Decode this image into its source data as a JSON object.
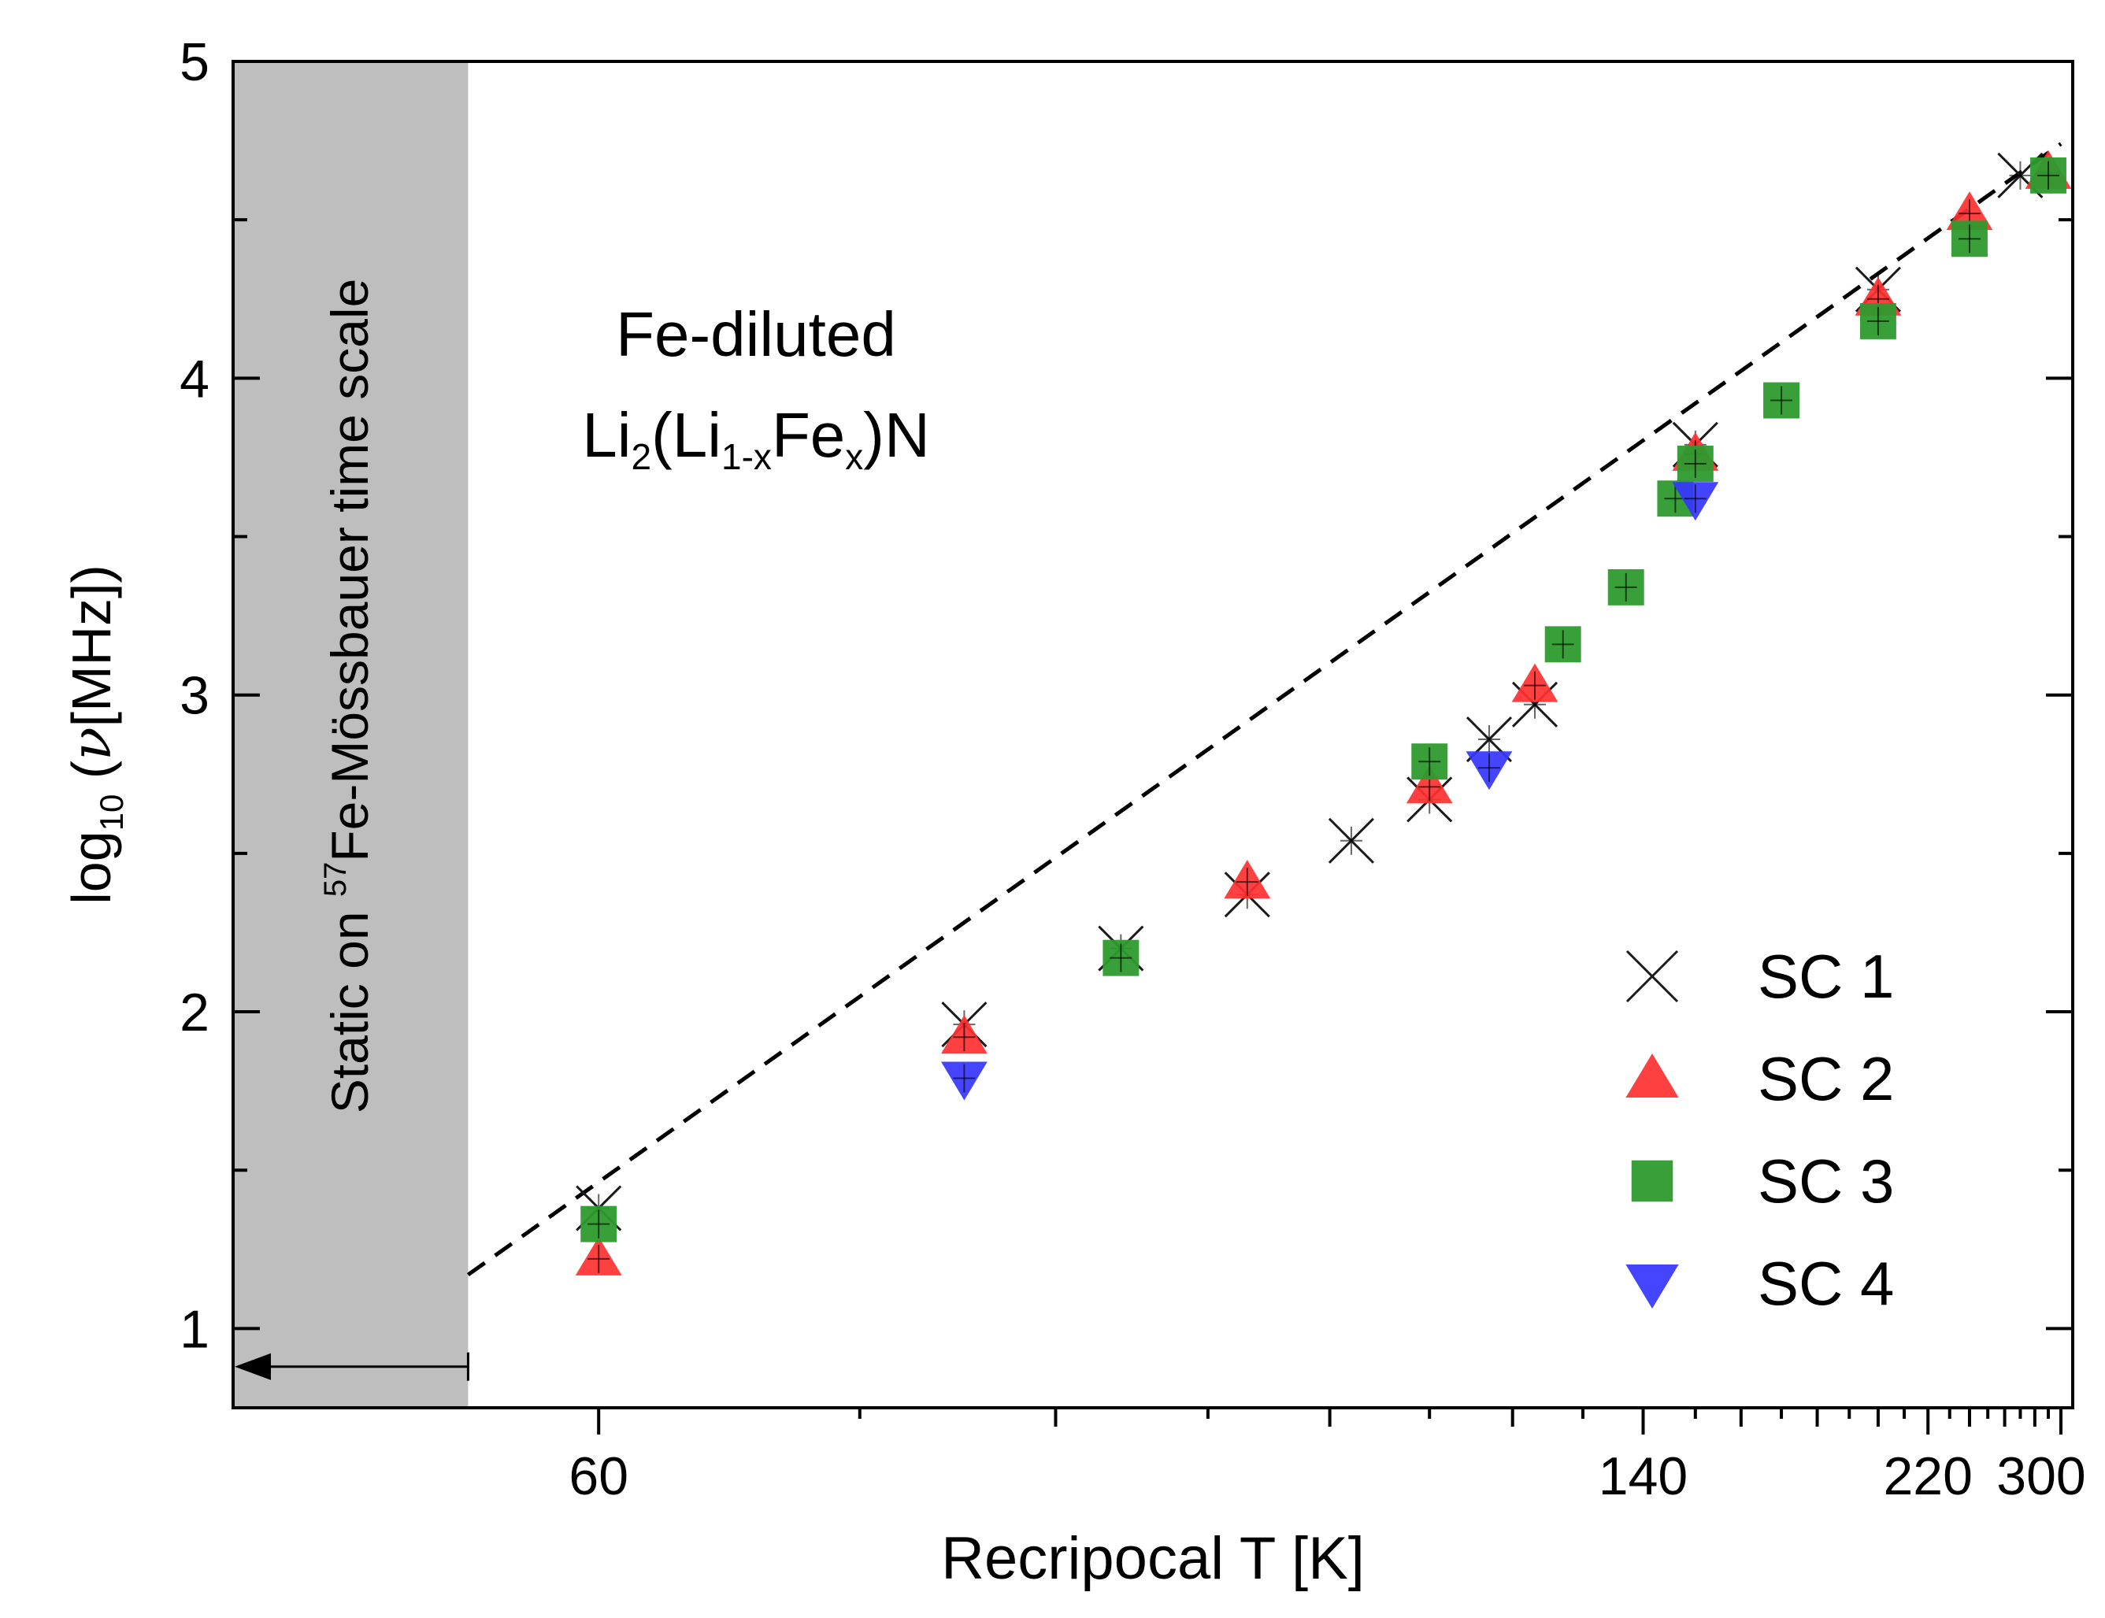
{
  "chart_data": {
    "type": "scatter",
    "title": "",
    "xlabel": "Recripocal T [K]",
    "ylabel": {
      "prefix": "log",
      "subscript": "10",
      "open": " (",
      "symbol": "ν",
      "unit": "[MHz])"
    },
    "x_axis": {
      "scale": "reciprocal temperature (1/T)",
      "range_T": [
        50,
        310
      ],
      "tick_labels": [
        "60",
        "140",
        "220",
        "300"
      ]
    },
    "y_axis": {
      "range": [
        0.75,
        5.0
      ],
      "ticks": [
        1,
        2,
        3,
        4,
        5
      ],
      "tick_labels": [
        "1",
        "2",
        "3",
        "4",
        "5"
      ]
    },
    "annotation": {
      "line1": "Fe-diluted",
      "line2": {
        "a": "Li",
        "b": "2",
        "c": "(Li",
        "d": "1-x",
        "e": "Fe",
        "f": "x",
        "g": ")N"
      }
    },
    "shaded_region": {
      "label_pre": "Static on ",
      "label_sup": "57",
      "label_post": "Fe-Mössbauer time scale",
      "color": "#bebebe"
    },
    "fit_line": {
      "style": "dashed",
      "color": "#000000",
      "points": [
        [
          56,
          1.17
        ],
        [
          300,
          4.74
        ]
      ]
    },
    "series": [
      {
        "name": "SC 1",
        "marker": "x",
        "color": "#1a1a1a",
        "points": [
          [
            60,
            1.38
          ],
          [
            75,
            1.96
          ],
          [
            84,
            2.2
          ],
          [
            93,
            2.37
          ],
          [
            102,
            2.54
          ],
          [
            110,
            2.67
          ],
          [
            117,
            2.86
          ],
          [
            123,
            2.97
          ],
          [
            150,
            3.79
          ],
          [
            200,
            4.28
          ],
          [
            270,
            4.64
          ]
        ]
      },
      {
        "name": "SC 2",
        "marker": "triangle-up",
        "color": "#ff3030",
        "points": [
          [
            60,
            1.22
          ],
          [
            75,
            1.92
          ],
          [
            93,
            2.41
          ],
          [
            110,
            2.71
          ],
          [
            123,
            3.03
          ],
          [
            150,
            3.76
          ],
          [
            200,
            4.25
          ],
          [
            240,
            4.52
          ],
          [
            290,
            4.65
          ]
        ]
      },
      {
        "name": "SC 3",
        "marker": "square",
        "color": "#2e9a2e",
        "points": [
          [
            60,
            1.33
          ],
          [
            84,
            2.17
          ],
          [
            110,
            2.79
          ],
          [
            127,
            3.16
          ],
          [
            137,
            3.34
          ],
          [
            146,
            3.62
          ],
          [
            150,
            3.73
          ],
          [
            170,
            3.93
          ],
          [
            200,
            4.18
          ],
          [
            240,
            4.44
          ],
          [
            290,
            4.64
          ]
        ]
      },
      {
        "name": "SC 4",
        "marker": "triangle-down",
        "color": "#3535ff",
        "points": [
          [
            75,
            1.79
          ],
          [
            117,
            2.77
          ],
          [
            150,
            3.62
          ]
        ]
      }
    ],
    "legend": {
      "position": "bottom-right",
      "entries": [
        "SC 1",
        "SC 2",
        "SC 3",
        "SC 4"
      ]
    }
  }
}
